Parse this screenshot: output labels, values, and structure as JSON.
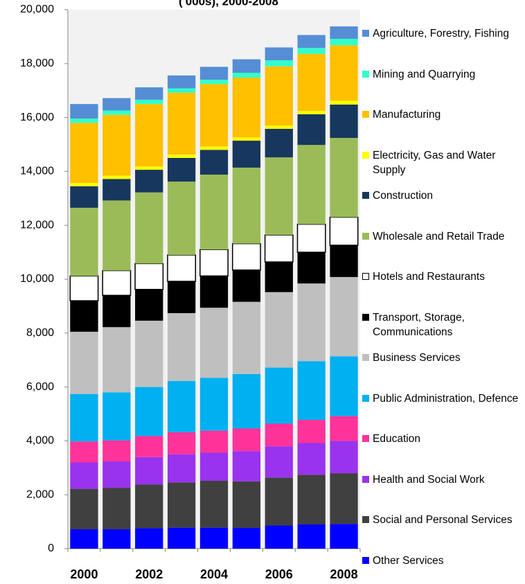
{
  "chart_data": {
    "type": "stacked_bar",
    "title": "('000s), 2000-2008",
    "categories": [
      "2000",
      null,
      "2002",
      null,
      "2004",
      null,
      "2006",
      null,
      "2008"
    ],
    "ylim": [
      0,
      20000
    ],
    "yticks": [
      0,
      {
        "value": 2000,
        "label": "2,000"
      },
      {
        "value": 4000,
        "label": "4,000"
      },
      {
        "value": 6000,
        "label": "6,000"
      },
      {
        "value": 8000,
        "label": "8,000"
      },
      {
        "value": 10000,
        "label": "10,000"
      },
      {
        "value": 12000,
        "label": "12,000"
      },
      {
        "value": 14000,
        "label": "14,000"
      },
      {
        "value": 16000,
        "label": "16,000"
      },
      {
        "value": 18000,
        "label": "18,000"
      },
      {
        "value": 20000,
        "label": "20,000"
      }
    ],
    "grid": false,
    "legend": "right",
    "series": [
      {
        "name": "Other Services",
        "color": "#0000ff",
        "values": [
          720,
          720,
          760,
          780,
          780,
          770,
          860,
          900,
          920
        ]
      },
      {
        "name": "Social and Personal Services",
        "color": "#404040",
        "values": [
          1500,
          1540,
          1620,
          1680,
          1740,
          1730,
          1780,
          1840,
          1880
        ]
      },
      {
        "name": "Health and Social Work",
        "color": "#9933ee",
        "values": [
          980,
          980,
          1020,
          1040,
          1040,
          1120,
          1160,
          1180,
          1200
        ]
      },
      {
        "name": "Education",
        "color": "#ff3399",
        "values": [
          780,
          780,
          780,
          820,
          820,
          840,
          840,
          860,
          920
        ]
      },
      {
        "name": "Public Administration, Defence",
        "color": "#00b0f0",
        "values": [
          1760,
          1780,
          1820,
          1900,
          1960,
          2020,
          2080,
          2180,
          2220
        ]
      },
      {
        "name": "Business Services",
        "color": "#bfbfbf",
        "values": [
          2310,
          2420,
          2460,
          2520,
          2600,
          2680,
          2800,
          2880,
          2940
        ]
      },
      {
        "name": "Transport, Storage, Communications",
        "color": "#000000",
        "values": [
          1150,
          1180,
          1160,
          1180,
          1180,
          1180,
          1120,
          1160,
          1180
        ]
      },
      {
        "name": "Hotels and Restaurants",
        "color": "#ffffff",
        "values": [
          920,
          920,
          960,
          980,
          980,
          980,
          1000,
          1040,
          1040
        ]
      },
      {
        "name": "Wholesale and Retail Trade",
        "color": "#9bbb59",
        "values": [
          2530,
          2600,
          2640,
          2720,
          2780,
          2820,
          2880,
          2940,
          2940
        ]
      },
      {
        "name": "Construction",
        "color": "#17375e",
        "values": [
          800,
          800,
          840,
          880,
          920,
          1000,
          1060,
          1140,
          1240
        ]
      },
      {
        "name": "Electricity, Gas and Water Supply",
        "color": "#ffff00",
        "values": [
          120,
          120,
          120,
          120,
          120,
          120,
          120,
          120,
          140
        ]
      },
      {
        "name": "Manufacturing",
        "color": "#ffc000",
        "values": [
          2230,
          2260,
          2320,
          2300,
          2320,
          2220,
          2200,
          2120,
          2060
        ]
      },
      {
        "name": "Mining and Quarrying",
        "color": "#33ffcc",
        "values": [
          160,
          160,
          160,
          160,
          160,
          180,
          220,
          220,
          240
        ]
      },
      {
        "name": "Agriculture, Forestry, Fishing",
        "color": "#558ed5",
        "values": [
          540,
          460,
          460,
          480,
          480,
          500,
          480,
          480,
          460
        ]
      }
    ]
  }
}
